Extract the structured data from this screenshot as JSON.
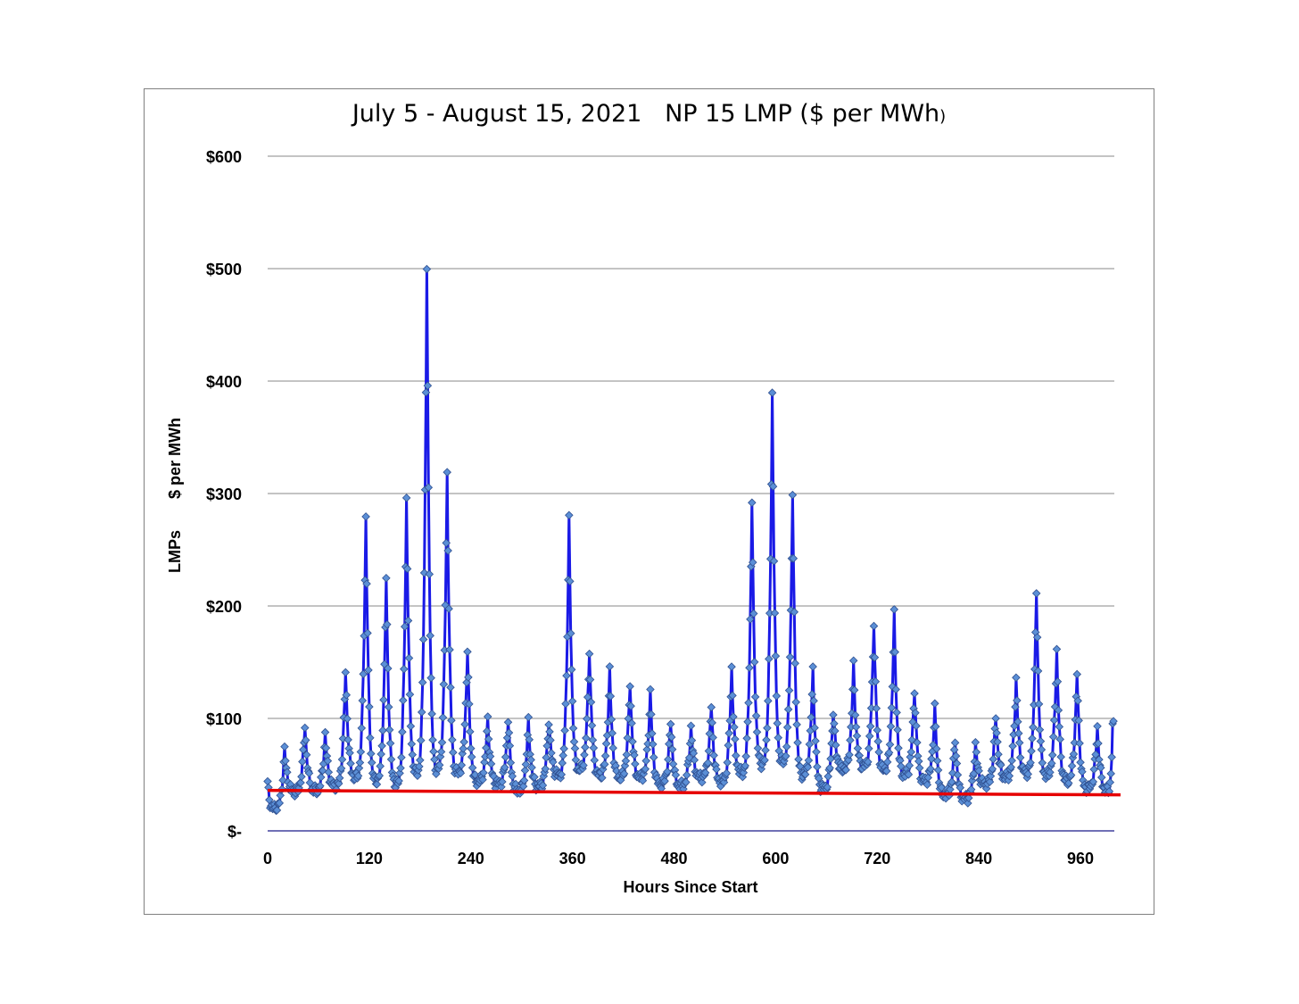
{
  "chart_data": {
    "type": "line",
    "title_main": "July 5 - August 15, 2021   NP 15 LMP ($ per MWh",
    "title_tail": ")",
    "xlabel": "Hours Since Start",
    "ylabel": "LMPs       $ per MWh",
    "xlim": [
      0,
      1000
    ],
    "ylim": [
      0,
      600
    ],
    "x_ticks": [
      0,
      120,
      240,
      360,
      480,
      600,
      720,
      840,
      960
    ],
    "x_tick_labels": [
      "0",
      "120",
      "240",
      "360",
      "480",
      "600",
      "720",
      "840",
      "960"
    ],
    "y_ticks": [
      0,
      100,
      200,
      300,
      400,
      500,
      600
    ],
    "y_tick_labels": [
      "$-",
      "$100",
      "$200",
      "$300",
      "$400",
      "$500",
      "$600"
    ],
    "grid": true,
    "colors": {
      "series": "#1a1ae6",
      "marker": "#5b8fd6",
      "marker_edge": "#2f4f8f",
      "trend": "#e60000",
      "grid": "#888888"
    },
    "daily_peaks": [
      {
        "hour": 20,
        "value": 72
      },
      {
        "hour": 44,
        "value": 94
      },
      {
        "hour": 68,
        "value": 86
      },
      {
        "hour": 92,
        "value": 142
      },
      {
        "hour": 116,
        "value": 279
      },
      {
        "hour": 140,
        "value": 225
      },
      {
        "hour": 164,
        "value": 296
      },
      {
        "hour": 188,
        "value": 500
      },
      {
        "hour": 212,
        "value": 318
      },
      {
        "hour": 236,
        "value": 161
      },
      {
        "hour": 260,
        "value": 99
      },
      {
        "hour": 284,
        "value": 100
      },
      {
        "hour": 308,
        "value": 97
      },
      {
        "hour": 332,
        "value": 99
      },
      {
        "hour": 356,
        "value": 276
      },
      {
        "hour": 380,
        "value": 162
      },
      {
        "hour": 404,
        "value": 142
      },
      {
        "hour": 428,
        "value": 132
      },
      {
        "hour": 452,
        "value": 123
      },
      {
        "hour": 476,
        "value": 97
      },
      {
        "hour": 500,
        "value": 92
      },
      {
        "hour": 524,
        "value": 111
      },
      {
        "hour": 548,
        "value": 145
      },
      {
        "hour": 572,
        "value": 293
      },
      {
        "hour": 596,
        "value": 388
      },
      {
        "hour": 620,
        "value": 301
      },
      {
        "hour": 644,
        "value": 143
      },
      {
        "hour": 668,
        "value": 107
      },
      {
        "hour": 692,
        "value": 147
      },
      {
        "hour": 716,
        "value": 187
      },
      {
        "hour": 740,
        "value": 192
      },
      {
        "hour": 764,
        "value": 127
      },
      {
        "hour": 788,
        "value": 109
      },
      {
        "hour": 812,
        "value": 82
      },
      {
        "hour": 836,
        "value": 76
      },
      {
        "hour": 860,
        "value": 102
      },
      {
        "hour": 884,
        "value": 135
      },
      {
        "hour": 908,
        "value": 212
      },
      {
        "hour": 932,
        "value": 161
      },
      {
        "hour": 956,
        "value": 140
      },
      {
        "hour": 980,
        "value": 92
      },
      {
        "hour": 998,
        "value": 93
      }
    ],
    "daily_troughs": [
      {
        "hour": 8,
        "value": 20
      },
      {
        "hour": 32,
        "value": 35
      },
      {
        "hour": 56,
        "value": 36
      },
      {
        "hour": 80,
        "value": 40
      },
      {
        "hour": 104,
        "value": 48
      },
      {
        "hour": 128,
        "value": 45
      },
      {
        "hour": 152,
        "value": 42
      },
      {
        "hour": 176,
        "value": 52
      },
      {
        "hour": 200,
        "value": 55
      },
      {
        "hour": 224,
        "value": 52
      },
      {
        "hour": 248,
        "value": 44
      },
      {
        "hour": 272,
        "value": 42
      },
      {
        "hour": 296,
        "value": 36
      },
      {
        "hour": 320,
        "value": 40
      },
      {
        "hour": 344,
        "value": 50
      },
      {
        "hour": 368,
        "value": 55
      },
      {
        "hour": 392,
        "value": 50
      },
      {
        "hour": 416,
        "value": 48
      },
      {
        "hour": 440,
        "value": 48
      },
      {
        "hour": 464,
        "value": 42
      },
      {
        "hour": 488,
        "value": 40
      },
      {
        "hour": 512,
        "value": 48
      },
      {
        "hour": 536,
        "value": 44
      },
      {
        "hour": 560,
        "value": 52
      },
      {
        "hour": 584,
        "value": 60
      },
      {
        "hour": 608,
        "value": 62
      },
      {
        "hour": 632,
        "value": 50
      },
      {
        "hour": 656,
        "value": 38
      },
      {
        "hour": 680,
        "value": 55
      },
      {
        "hour": 704,
        "value": 58
      },
      {
        "hour": 728,
        "value": 55
      },
      {
        "hour": 752,
        "value": 50
      },
      {
        "hour": 776,
        "value": 45
      },
      {
        "hour": 800,
        "value": 32
      },
      {
        "hour": 824,
        "value": 29
      },
      {
        "hour": 848,
        "value": 42
      },
      {
        "hour": 872,
        "value": 48
      },
      {
        "hour": 896,
        "value": 52
      },
      {
        "hour": 920,
        "value": 50
      },
      {
        "hour": 944,
        "value": 45
      },
      {
        "hour": 968,
        "value": 38
      },
      {
        "hour": 992,
        "value": 36
      }
    ],
    "trendline": {
      "x": [
        0,
        1000
      ],
      "y": [
        36,
        32
      ]
    }
  }
}
